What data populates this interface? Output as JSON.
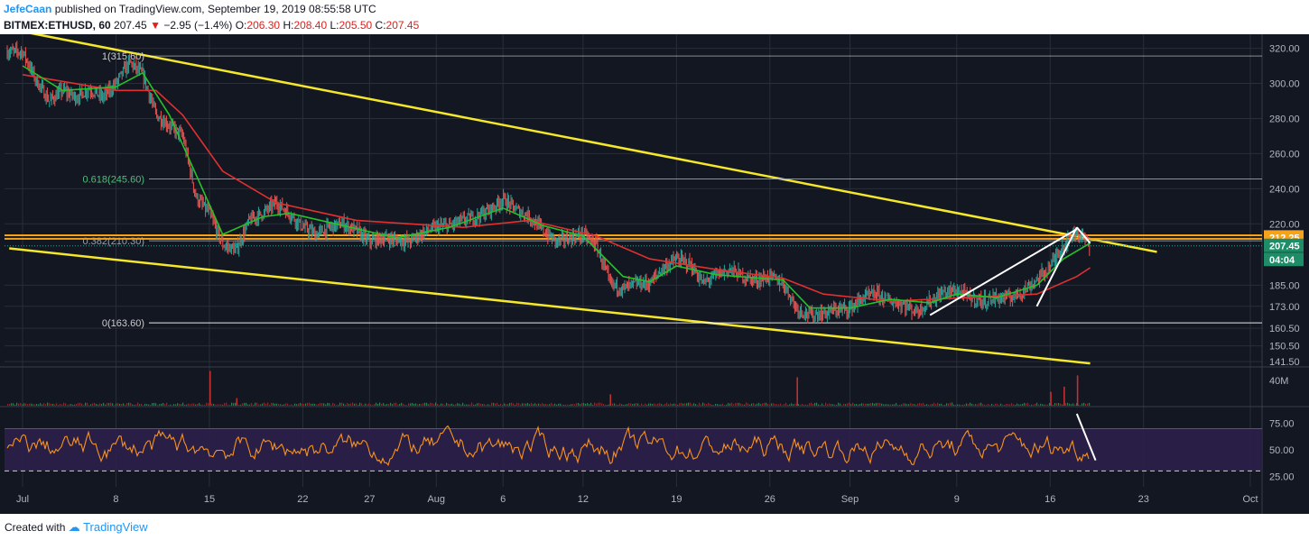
{
  "header": {
    "author": "JefeCaan",
    "published": "published on TradingView.com, September 19, 2019 08:55:58 UTC",
    "symbol": "BITMEX:ETHUSD, 60",
    "price": "207.45",
    "change": "−2.95 (−1.4%)",
    "o_label": "O:",
    "o_value": "206.30",
    "h_label": "H:",
    "h_value": "208.40",
    "l_label": "L:",
    "l_value": "205.50",
    "c_label": "C:",
    "c_value": "207.45"
  },
  "footer": {
    "created_with": "Created with",
    "brand": "TradingView"
  },
  "colors": {
    "background": "#131722",
    "grid": "#2a2e39",
    "channel": "#f5e82a",
    "resistance": "#f7a21b",
    "fib": "#ffffff",
    "ema_fast": "#26c22a",
    "ema_slow": "#e03030",
    "rsi": "#f7931e",
    "rsi_band": "#2c1f4a",
    "axis_text": "#b2b5be",
    "up": "#26a69a",
    "down": "#ef5350"
  },
  "chart_data": [
    {
      "type": "candlestick",
      "panel": "price",
      "x_ticks": [
        "Jul",
        "8",
        "15",
        "22",
        "27",
        "Aug",
        "6",
        "12",
        "19",
        "26",
        "Sep",
        "9",
        "16",
        "23",
        "Oct"
      ],
      "y_ticks": [
        "320.00",
        "300.00",
        "280.00",
        "260.00",
        "240.00",
        "220.00",
        "185.00",
        "173.00",
        "160.50",
        "150.50",
        "141.50"
      ],
      "ylim": [
        139,
        328
      ],
      "close_path": [
        {
          "x": "Jul 1",
          "y": 318
        },
        {
          "x": "Jul 2",
          "y": 302
        },
        {
          "x": "Jul 3",
          "y": 290
        },
        {
          "x": "Jul 4",
          "y": 296
        },
        {
          "x": "Jul 5",
          "y": 292
        },
        {
          "x": "Jul 6",
          "y": 297
        },
        {
          "x": "Jul 7",
          "y": 292
        },
        {
          "x": "Jul 8",
          "y": 300
        },
        {
          "x": "Jul 9",
          "y": 312
        },
        {
          "x": "Jul 10",
          "y": 305
        },
        {
          "x": "Jul 11",
          "y": 282
        },
        {
          "x": "Jul 12",
          "y": 276
        },
        {
          "x": "Jul 13",
          "y": 270
        },
        {
          "x": "Jul 14",
          "y": 235
        },
        {
          "x": "Jul 15",
          "y": 226
        },
        {
          "x": "Jul 16",
          "y": 208
        },
        {
          "x": "Jul 17",
          "y": 205
        },
        {
          "x": "Jul 18",
          "y": 222
        },
        {
          "x": "Jul 19",
          "y": 226
        },
        {
          "x": "Jul 20",
          "y": 232
        },
        {
          "x": "Jul 21",
          "y": 226
        },
        {
          "x": "Jul 22",
          "y": 218
        },
        {
          "x": "Jul 23",
          "y": 214
        },
        {
          "x": "Jul 24",
          "y": 218
        },
        {
          "x": "Jul 25",
          "y": 220
        },
        {
          "x": "Jul 26",
          "y": 216
        },
        {
          "x": "Jul 27",
          "y": 210
        },
        {
          "x": "Jul 28",
          "y": 212
        },
        {
          "x": "Jul 29",
          "y": 211
        },
        {
          "x": "Jul 30",
          "y": 210
        },
        {
          "x": "Jul 31",
          "y": 215
        },
        {
          "x": "Aug 1",
          "y": 218
        },
        {
          "x": "Aug 2",
          "y": 219
        },
        {
          "x": "Aug 3",
          "y": 222
        },
        {
          "x": "Aug 4",
          "y": 224
        },
        {
          "x": "Aug 5",
          "y": 228
        },
        {
          "x": "Aug 6",
          "y": 234
        },
        {
          "x": "Aug 7",
          "y": 228
        },
        {
          "x": "Aug 8",
          "y": 224
        },
        {
          "x": "Aug 9",
          "y": 216
        },
        {
          "x": "Aug 10",
          "y": 210
        },
        {
          "x": "Aug 11",
          "y": 212
        },
        {
          "x": "Aug 12",
          "y": 214
        },
        {
          "x": "Aug 13",
          "y": 208
        },
        {
          "x": "Aug 14",
          "y": 186
        },
        {
          "x": "Aug 15",
          "y": 183
        },
        {
          "x": "Aug 16",
          "y": 186
        },
        {
          "x": "Aug 17",
          "y": 186
        },
        {
          "x": "Aug 18",
          "y": 195
        },
        {
          "x": "Aug 19",
          "y": 200
        },
        {
          "x": "Aug 20",
          "y": 197
        },
        {
          "x": "Aug 21",
          "y": 186
        },
        {
          "x": "Aug 22",
          "y": 191
        },
        {
          "x": "Aug 23",
          "y": 194
        },
        {
          "x": "Aug 24",
          "y": 190
        },
        {
          "x": "Aug 25",
          "y": 188
        },
        {
          "x": "Aug 26",
          "y": 190
        },
        {
          "x": "Aug 27",
          "y": 186
        },
        {
          "x": "Aug 28",
          "y": 172
        },
        {
          "x": "Aug 29",
          "y": 168
        },
        {
          "x": "Aug 30",
          "y": 169
        },
        {
          "x": "Aug 31",
          "y": 171
        },
        {
          "x": "Sep 1",
          "y": 172
        },
        {
          "x": "Sep 2",
          "y": 178
        },
        {
          "x": "Sep 3",
          "y": 180
        },
        {
          "x": "Sep 4",
          "y": 176
        },
        {
          "x": "Sep 5",
          "y": 174
        },
        {
          "x": "Sep 6",
          "y": 170
        },
        {
          "x": "Sep 7",
          "y": 176
        },
        {
          "x": "Sep 8",
          "y": 181
        },
        {
          "x": "Sep 9",
          "y": 182
        },
        {
          "x": "Sep 10",
          "y": 178
        },
        {
          "x": "Sep 11",
          "y": 176
        },
        {
          "x": "Sep 12",
          "y": 178
        },
        {
          "x": "Sep 13",
          "y": 178
        },
        {
          "x": "Sep 14",
          "y": 182
        },
        {
          "x": "Sep 15",
          "y": 188
        },
        {
          "x": "Sep 16",
          "y": 196
        },
        {
          "x": "Sep 17",
          "y": 208
        },
        {
          "x": "Sep 18",
          "y": 216
        },
        {
          "x": "Sep 19",
          "y": 207.45
        }
      ],
      "ema_fast_path": [
        {
          "x": "Jul 1",
          "y": 310
        },
        {
          "x": "Jul 4",
          "y": 296
        },
        {
          "x": "Jul 8",
          "y": 298
        },
        {
          "x": "Jul 10",
          "y": 306
        },
        {
          "x": "Jul 12",
          "y": 282
        },
        {
          "x": "Jul 14",
          "y": 248
        },
        {
          "x": "Jul 16",
          "y": 214
        },
        {
          "x": "Jul 19",
          "y": 224
        },
        {
          "x": "Jul 21",
          "y": 226
        },
        {
          "x": "Jul 25",
          "y": 219
        },
        {
          "x": "Jul 29",
          "y": 212
        },
        {
          "x": "Aug 2",
          "y": 218
        },
        {
          "x": "Aug 6",
          "y": 229
        },
        {
          "x": "Aug 9",
          "y": 219
        },
        {
          "x": "Aug 12",
          "y": 213
        },
        {
          "x": "Aug 15",
          "y": 190
        },
        {
          "x": "Aug 17",
          "y": 187
        },
        {
          "x": "Aug 19",
          "y": 196
        },
        {
          "x": "Aug 22",
          "y": 191
        },
        {
          "x": "Aug 27",
          "y": 188
        },
        {
          "x": "Aug 29",
          "y": 172
        },
        {
          "x": "Sep 1",
          "y": 172
        },
        {
          "x": "Sep 4",
          "y": 177
        },
        {
          "x": "Sep 7",
          "y": 175
        },
        {
          "x": "Sep 9",
          "y": 180
        },
        {
          "x": "Sep 12",
          "y": 178
        },
        {
          "x": "Sep 15",
          "y": 185
        },
        {
          "x": "Sep 17",
          "y": 200
        },
        {
          "x": "Sep 19",
          "y": 209
        }
      ],
      "ema_slow_path": [
        {
          "x": "Jul 1",
          "y": 305
        },
        {
          "x": "Jul 8",
          "y": 296
        },
        {
          "x": "Jul 11",
          "y": 296
        },
        {
          "x": "Jul 13",
          "y": 282
        },
        {
          "x": "Jul 16",
          "y": 250
        },
        {
          "x": "Jul 20",
          "y": 232
        },
        {
          "x": "Jul 26",
          "y": 222
        },
        {
          "x": "Aug 3",
          "y": 218
        },
        {
          "x": "Aug 8",
          "y": 222
        },
        {
          "x": "Aug 13",
          "y": 213
        },
        {
          "x": "Aug 17",
          "y": 200
        },
        {
          "x": "Aug 22",
          "y": 194
        },
        {
          "x": "Aug 27",
          "y": 189
        },
        {
          "x": "Aug 30",
          "y": 180
        },
        {
          "x": "Sep 4",
          "y": 176
        },
        {
          "x": "Sep 10",
          "y": 178
        },
        {
          "x": "Sep 15",
          "y": 180
        },
        {
          "x": "Sep 18",
          "y": 190
        },
        {
          "x": "Sep 19",
          "y": 195
        }
      ],
      "fib_levels": [
        {
          "label": "1(315.60)",
          "value": 315.6
        },
        {
          "label": "0.618(245.60)",
          "value": 245.6
        },
        {
          "label": "0.382(210.30)",
          "value": 210.3
        },
        {
          "label": "0(163.60)",
          "value": 163.6
        }
      ],
      "resistance_levels": [
        213.5,
        211.5
      ],
      "channel": {
        "upper": [
          {
            "x": "Jun 30",
            "y": 331
          },
          {
            "x": "Sep 24",
            "y": 204
          }
        ],
        "lower": [
          {
            "x": "Jun 30",
            "y": 206
          },
          {
            "x": "Sep 19",
            "y": 140.5
          }
        ]
      },
      "wedge": {
        "lower": [
          {
            "x": "Sep 7",
            "y": 168
          },
          {
            "x": "Sep 18",
            "y": 217
          }
        ],
        "upper": [
          {
            "x": "Sep 15",
            "y": 173
          },
          {
            "x": "Sep 18",
            "y": 218
          }
        ],
        "tip": [
          {
            "x": "Sep 18",
            "y": 218
          },
          {
            "x": "Sep 19",
            "y": 209
          }
        ]
      },
      "price_labels": [
        {
          "text": "212.25",
          "value": 212.25,
          "color": "#f7a21b"
        },
        {
          "text": "207.45",
          "value": 207.45,
          "color": "#1e8c67"
        },
        {
          "text": "04:04",
          "value": 199.5,
          "color": "#1e8c67"
        }
      ]
    },
    {
      "type": "bar",
      "panel": "volume",
      "y_ticks": [
        "40M"
      ],
      "ylim": [
        0,
        60
      ],
      "spikes": [
        {
          "x": "Jul 15",
          "value": 55
        },
        {
          "x": "Jul 17",
          "value": 12
        },
        {
          "x": "Aug 14",
          "value": 18
        },
        {
          "x": "Aug 28",
          "value": 45
        },
        {
          "x": "Sep 16",
          "value": 22
        },
        {
          "x": "Sep 17",
          "value": 30
        },
        {
          "x": "Sep 18",
          "value": 48
        }
      ]
    },
    {
      "type": "line",
      "panel": "rsi",
      "y_ticks": [
        "75.00",
        "50.00",
        "25.00"
      ],
      "ylim": [
        15,
        90
      ],
      "band": [
        30,
        70
      ],
      "trendline": [
        {
          "x": "Sep 18",
          "y": 84
        },
        {
          "x": "Sep 19",
          "y": 40
        }
      ]
    }
  ]
}
